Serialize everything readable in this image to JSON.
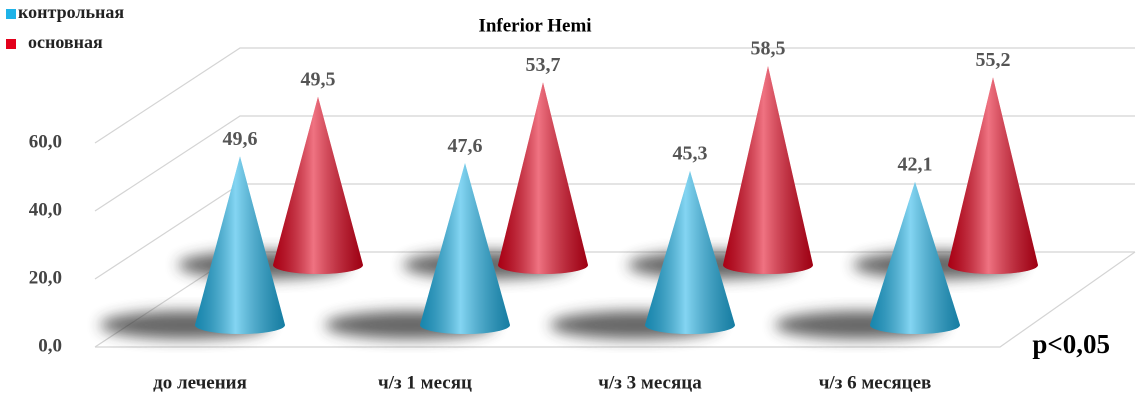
{
  "chart_data": {
    "type": "cone3d",
    "title": "Inferior Hemi",
    "categories": [
      "до лечения",
      "ч/з 1 месяц",
      "ч/з 3 месяца",
      "ч/з 6 месяцев"
    ],
    "series": [
      {
        "name": "контрольная",
        "color": "#1fb3e8",
        "values": [
          49.6,
          47.6,
          45.3,
          42.1
        ],
        "value_labels": [
          "49,6",
          "47,6",
          "45,3",
          "42,1"
        ]
      },
      {
        "name": "основная",
        "color": "#e3001b",
        "values": [
          49.5,
          53.7,
          58.5,
          55.2
        ],
        "value_labels": [
          "49,5",
          "53,7",
          "58,5",
          "55,2"
        ]
      }
    ],
    "ylim": [
      0,
      80
    ],
    "yticks": [
      {
        "value": 0,
        "label": "0,0"
      },
      {
        "value": 20,
        "label": "20,0"
      },
      {
        "value": 40,
        "label": "40,0"
      },
      {
        "value": 60,
        "label": "60,0"
      }
    ],
    "grid": true,
    "legend": "top-left",
    "annotation": "p<0,05"
  }
}
